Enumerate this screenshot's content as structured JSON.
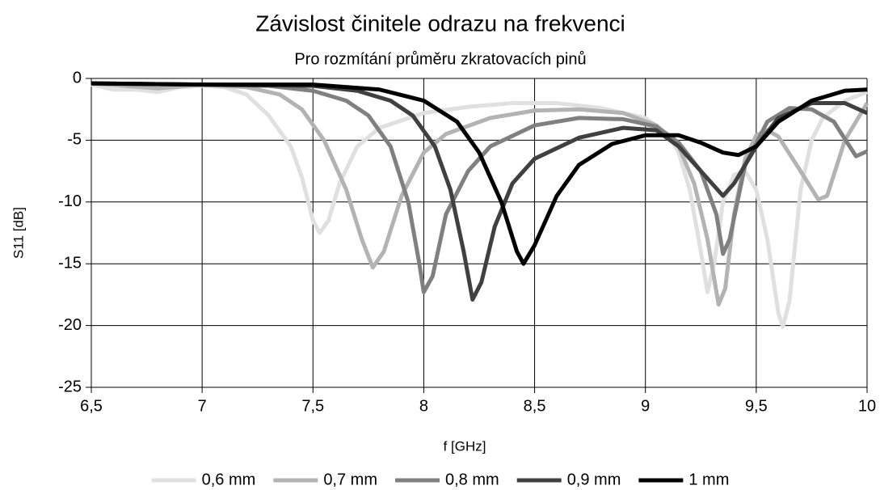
{
  "chart_data": {
    "type": "line",
    "title": "Závislost činitele odrazu na frekvenci",
    "subtitle": "Pro rozmítání průměru zkratovacích pinů",
    "x_label": "f [GHz]",
    "y_label": "S11 [dB]",
    "xlim": [
      6.5,
      10
    ],
    "ylim": [
      -25,
      0
    ],
    "xticks": [
      {
        "value": 6.5,
        "label": "6,5"
      },
      7,
      {
        "value": 7.5,
        "label": "7,5"
      },
      8,
      {
        "value": 8.5,
        "label": "8,5"
      },
      9,
      {
        "value": 9.5,
        "label": "9,5"
      },
      10
    ],
    "yticks": [
      0,
      -5,
      -10,
      -15,
      -20,
      -25
    ],
    "grid": true,
    "legend": "bottom",
    "series": [
      {
        "name": "0,6 mm",
        "color": "#e0e0e0",
        "x": [
          6.5,
          6.6,
          6.7,
          6.8,
          6.9,
          7.0,
          7.1,
          7.2,
          7.3,
          7.4,
          7.45,
          7.5,
          7.53,
          7.57,
          7.62,
          7.7,
          7.8,
          8.0,
          8.2,
          8.4,
          8.6,
          8.8,
          9.0,
          9.1,
          9.15,
          9.2,
          9.25,
          9.28,
          9.31,
          9.35,
          9.4,
          9.45,
          9.5,
          9.55,
          9.6,
          9.62,
          9.65,
          9.7,
          9.75,
          9.8,
          9.9,
          10.0
        ],
        "values": [
          -0.5,
          -0.9,
          -0.9,
          -1.1,
          -0.7,
          -0.6,
          -0.7,
          -1.3,
          -3,
          -5.5,
          -8,
          -11.5,
          -12.5,
          -11.5,
          -8.5,
          -5.5,
          -4,
          -2.8,
          -2.3,
          -2.0,
          -2.0,
          -2.4,
          -3.2,
          -4.5,
          -6,
          -9,
          -14,
          -17.3,
          -15,
          -10,
          -7.8,
          -7.5,
          -9,
          -13,
          -19,
          -20.1,
          -18,
          -9,
          -5,
          -3.2,
          -1.8,
          -1.1
        ]
      },
      {
        "name": "0,7 mm",
        "color": "#b3b3b3",
        "x": [
          6.5,
          6.8,
          7.0,
          7.2,
          7.35,
          7.45,
          7.55,
          7.65,
          7.72,
          7.77,
          7.82,
          7.9,
          8.0,
          8.1,
          8.3,
          8.5,
          8.7,
          8.9,
          9.05,
          9.15,
          9.22,
          9.28,
          9.33,
          9.36,
          9.4,
          9.45,
          9.5,
          9.55,
          9.6,
          9.7,
          9.78,
          9.82,
          9.9,
          10.0
        ],
        "values": [
          -0.4,
          -0.8,
          -0.5,
          -0.7,
          -1.3,
          -2.5,
          -5,
          -9,
          -13,
          -15.3,
          -14,
          -9.5,
          -6,
          -4.5,
          -3.2,
          -2.6,
          -2.5,
          -2.8,
          -3.8,
          -5.5,
          -8.5,
          -13,
          -18.3,
          -17,
          -11,
          -6.5,
          -4.6,
          -4.2,
          -4.7,
          -7.5,
          -9.8,
          -9.5,
          -5,
          -2
        ]
      },
      {
        "name": "0,8 mm",
        "color": "#808080",
        "x": [
          6.5,
          7.0,
          7.3,
          7.5,
          7.65,
          7.75,
          7.85,
          7.93,
          7.98,
          8.0,
          8.04,
          8.1,
          8.2,
          8.3,
          8.5,
          8.7,
          8.9,
          9.05,
          9.15,
          9.25,
          9.32,
          9.35,
          9.38,
          9.45,
          9.55,
          9.65,
          9.75,
          9.85,
          9.95,
          10.0
        ],
        "values": [
          -0.4,
          -0.5,
          -0.6,
          -1.0,
          -1.8,
          -3,
          -5.5,
          -10,
          -15,
          -17.3,
          -16,
          -11,
          -7.5,
          -5.5,
          -3.8,
          -3.2,
          -3.3,
          -3.9,
          -5.2,
          -7.5,
          -11,
          -14.2,
          -13,
          -7,
          -3.5,
          -2.4,
          -2.5,
          -3.5,
          -6.3,
          -5.9
        ]
      },
      {
        "name": "0,9 mm",
        "color": "#404040",
        "x": [
          6.5,
          7.0,
          7.5,
          7.7,
          7.85,
          7.95,
          8.05,
          8.12,
          8.18,
          8.22,
          8.26,
          8.32,
          8.4,
          8.5,
          8.7,
          8.9,
          9.05,
          9.15,
          9.25,
          9.35,
          9.4,
          9.5,
          9.6,
          9.75,
          9.9,
          10.0
        ],
        "values": [
          -0.4,
          -0.5,
          -0.6,
          -1.0,
          -1.8,
          -3,
          -5.5,
          -9,
          -14,
          -17.9,
          -16.5,
          -12,
          -8.5,
          -6.5,
          -4.8,
          -4.0,
          -4.2,
          -5.5,
          -7.5,
          -9.5,
          -8.5,
          -5.5,
          -3.2,
          -2,
          -2,
          -2.8
        ]
      },
      {
        "name": "1 mm",
        "color": "#000000",
        "x": [
          6.5,
          7.0,
          7.5,
          7.8,
          8.0,
          8.15,
          8.25,
          8.35,
          8.42,
          8.45,
          8.5,
          8.6,
          8.7,
          8.85,
          9.0,
          9.15,
          9.25,
          9.35,
          9.42,
          9.5,
          9.6,
          9.75,
          9.9,
          10.0
        ],
        "values": [
          -0.4,
          -0.5,
          -0.5,
          -0.9,
          -1.8,
          -3.5,
          -6,
          -10,
          -14,
          -15,
          -13.5,
          -9.5,
          -7,
          -5.3,
          -4.6,
          -4.6,
          -5.2,
          -6.0,
          -6.2,
          -5.5,
          -3.5,
          -1.8,
          -1.0,
          -0.9
        ]
      }
    ]
  }
}
